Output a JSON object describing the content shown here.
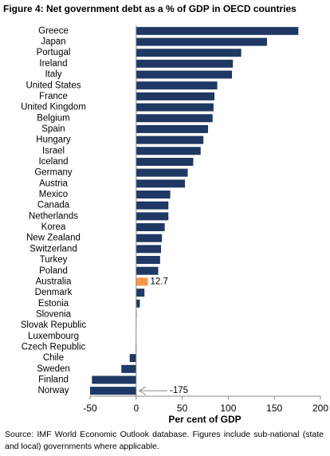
{
  "chart_data": {
    "type": "barh",
    "title": "Figure 4: Net government debt as a % of GDP in OECD countries",
    "xlabel": "Per cent of GDP",
    "note": "Source: IMF World Economic Outlook database. Figures include sub-national (state and local) governments where applicable.",
    "categories": [
      "Greece",
      "Japan",
      "Portugal",
      "Ireland",
      "Italy",
      "United States",
      "France",
      "United Kingdom",
      "Belgium",
      "Spain",
      "Hungary",
      "Israel",
      "Iceland",
      "Germany",
      "Austria",
      "Mexico",
      "Canada",
      "Netherlands",
      "Korea",
      "New Zealand",
      "Switzerland",
      "Turkey",
      "Poland",
      "Australia",
      "Denmark",
      "Estonia",
      "Slovenia",
      "Slovak Republic",
      "Luxembourg",
      "Czech Republic",
      "Chile",
      "Sweden",
      "Finland",
      "Norway"
    ],
    "values": [
      176,
      142,
      114,
      105,
      104,
      88,
      85,
      84,
      83,
      78,
      73,
      70,
      62,
      56,
      53,
      37,
      35,
      35,
      31,
      28,
      27,
      26,
      24,
      12.7,
      9,
      4,
      0.5,
      0.3,
      -0.3,
      -0.5,
      -7,
      -16,
      -48,
      -175
    ],
    "value_labels": [
      null,
      null,
      null,
      null,
      null,
      null,
      null,
      null,
      null,
      null,
      null,
      null,
      null,
      null,
      null,
      null,
      null,
      null,
      null,
      null,
      null,
      null,
      null,
      "12.7",
      null,
      null,
      null,
      null,
      null,
      null,
      null,
      null,
      null,
      "-175"
    ],
    "colors": [
      "#1f3864",
      "#1f3864",
      "#1f3864",
      "#1f3864",
      "#1f3864",
      "#1f3864",
      "#1f3864",
      "#1f3864",
      "#1f3864",
      "#1f3864",
      "#1f3864",
      "#1f3864",
      "#1f3864",
      "#1f3864",
      "#1f3864",
      "#1f3864",
      "#1f3864",
      "#1f3864",
      "#1f3864",
      "#1f3864",
      "#1f3864",
      "#1f3864",
      "#1f3864",
      "#f79646",
      "#1f3864",
      "#1f3864",
      "#1f3864",
      "#1f3864",
      "#1f3864",
      "#1f3864",
      "#1f3864",
      "#1f3864",
      "#1f3864",
      "#1f3864"
    ],
    "xlim": [
      -50,
      200
    ],
    "xticks": [
      -50,
      0,
      50,
      100,
      150,
      200
    ],
    "grid": false
  }
}
